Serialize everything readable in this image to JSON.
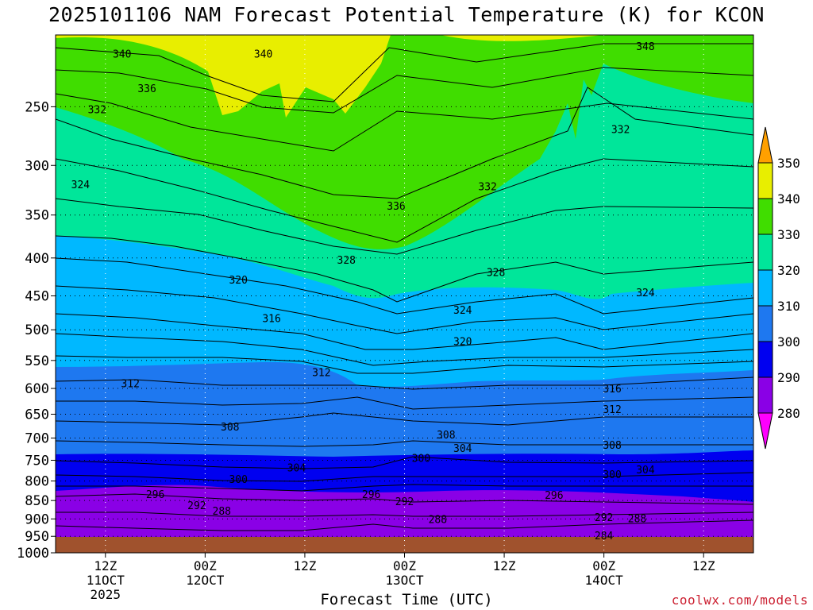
{
  "title": "2025101106 NAM Forecast Potential Temperature (K) for KCON",
  "credit": "coolwx.com/models",
  "chart_data": {
    "type": "heatmap",
    "title": "2025101106 NAM Forecast Potential Temperature (K) for KCON",
    "xlabel": "Forecast Time (UTC)",
    "ylabel": "",
    "x_ticks": [
      {
        "hour": 6,
        "lines": [
          "12Z",
          "11OCT",
          "2025"
        ]
      },
      {
        "hour": 18,
        "lines": [
          "00Z",
          "12OCT"
        ]
      },
      {
        "hour": 30,
        "lines": [
          "12Z"
        ]
      },
      {
        "hour": 42,
        "lines": [
          "00Z",
          "13OCT"
        ]
      },
      {
        "hour": 54,
        "lines": [
          "12Z"
        ]
      },
      {
        "hour": 66,
        "lines": [
          "00Z",
          "14OCT"
        ]
      },
      {
        "hour": 78,
        "lines": [
          "12Z"
        ]
      }
    ],
    "xlim_hours": [
      0,
      84
    ],
    "y_ticks": [
      250,
      300,
      350,
      400,
      450,
      500,
      550,
      600,
      650,
      700,
      750,
      800,
      850,
      900,
      950,
      1000
    ],
    "ylim_hpa": [
      200,
      1000
    ],
    "grid": true,
    "colorbar": {
      "levels": [
        280,
        290,
        300,
        310,
        320,
        330,
        340,
        350
      ],
      "colors": [
        "#ff00ff",
        "#8a00e6",
        "#6e1ee8",
        "#0000f0",
        "#1e78f0",
        "#00b8ff",
        "#00e69a",
        "#40dd00",
        "#e8ee00",
        "#ffa000"
      ]
    },
    "contour_labels": [
      {
        "hour": 8,
        "hpa": 212,
        "label": "340"
      },
      {
        "hour": 25,
        "hpa": 212,
        "label": "340"
      },
      {
        "hour": 71,
        "hpa": 207,
        "label": "348"
      },
      {
        "hour": 11,
        "hpa": 236,
        "label": "336"
      },
      {
        "hour": 5,
        "hpa": 252,
        "label": "332"
      },
      {
        "hour": 68,
        "hpa": 268,
        "label": "332"
      },
      {
        "hour": 3,
        "hpa": 318,
        "label": "324"
      },
      {
        "hour": 41,
        "hpa": 340,
        "label": "336"
      },
      {
        "hour": 52,
        "hpa": 320,
        "label": "332"
      },
      {
        "hour": 35,
        "hpa": 402,
        "label": "328"
      },
      {
        "hour": 53,
        "hpa": 418,
        "label": "328"
      },
      {
        "hour": 22,
        "hpa": 428,
        "label": "320"
      },
      {
        "hour": 71,
        "hpa": 445,
        "label": "324"
      },
      {
        "hour": 26,
        "hpa": 482,
        "label": "316"
      },
      {
        "hour": 49,
        "hpa": 470,
        "label": "324"
      },
      {
        "hour": 49,
        "hpa": 518,
        "label": "320"
      },
      {
        "hour": 9,
        "hpa": 590,
        "label": "312"
      },
      {
        "hour": 32,
        "hpa": 570,
        "label": "312"
      },
      {
        "hour": 67,
        "hpa": 600,
        "label": "316"
      },
      {
        "hour": 21,
        "hpa": 675,
        "label": "308"
      },
      {
        "hour": 67,
        "hpa": 640,
        "label": "312"
      },
      {
        "hour": 47,
        "hpa": 692,
        "label": "308"
      },
      {
        "hour": 49,
        "hpa": 722,
        "label": "304"
      },
      {
        "hour": 67,
        "hpa": 715,
        "label": "308"
      },
      {
        "hour": 44,
        "hpa": 745,
        "label": "300"
      },
      {
        "hour": 29,
        "hpa": 767,
        "label": "304"
      },
      {
        "hour": 71,
        "hpa": 772,
        "label": "304"
      },
      {
        "hour": 22,
        "hpa": 795,
        "label": "300"
      },
      {
        "hour": 67,
        "hpa": 783,
        "label": "300"
      },
      {
        "hour": 12,
        "hpa": 833,
        "label": "296"
      },
      {
        "hour": 38,
        "hpa": 833,
        "label": "296"
      },
      {
        "hour": 60,
        "hpa": 835,
        "label": "296"
      },
      {
        "hour": 17,
        "hpa": 862,
        "label": "292"
      },
      {
        "hour": 42,
        "hpa": 852,
        "label": "292"
      },
      {
        "hour": 66,
        "hpa": 895,
        "label": "292"
      },
      {
        "hour": 20,
        "hpa": 877,
        "label": "288"
      },
      {
        "hour": 46,
        "hpa": 900,
        "label": "288"
      },
      {
        "hour": 70,
        "hpa": 898,
        "label": "288"
      },
      {
        "hour": 66,
        "hpa": 947,
        "label": "284"
      }
    ]
  }
}
